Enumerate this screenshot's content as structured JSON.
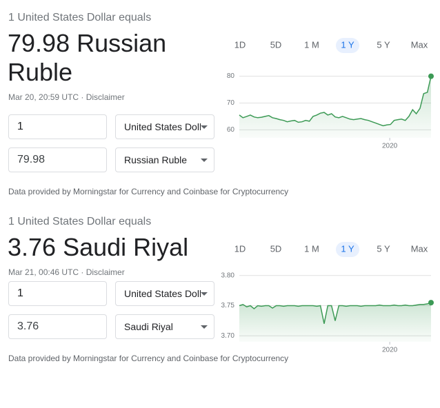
{
  "widgets": [
    {
      "header": "1 United States Dollar equals",
      "amount": "79.98 Russian Ruble",
      "timestamp": "Mar 20, 20:59 UTC",
      "disclaimer": "Disclaimer",
      "from_amount": "1",
      "from_currency": "United States Dollar",
      "to_amount": "79.98",
      "to_currency": "Russian Ruble",
      "footer": "Data provided by Morningstar for Currency and Coinbase for Cryptocurrency",
      "ranges": [
        "1D",
        "5D",
        "1 M",
        "1 Y",
        "5 Y",
        "Max"
      ],
      "selected_range": 3,
      "chart": {
        "type": "line",
        "color": "#3c9a55",
        "values": [
          65.5,
          64.5,
          65,
          65.5,
          64.8,
          64.5,
          64.7,
          65,
          65.3,
          64.5,
          64.2,
          63.8,
          63.5,
          63,
          63.3,
          63.5,
          62.8,
          63,
          63.5,
          63.2,
          65,
          65.5,
          66.2,
          66.5,
          65.5,
          66,
          64.8,
          64.5,
          65,
          64.5,
          64,
          63.8,
          64,
          64.2,
          63.8,
          63.5,
          63,
          62.5,
          62,
          61.5,
          61.8,
          62,
          63.5,
          63.8,
          64,
          63.5,
          65,
          67.5,
          66,
          68,
          73.5,
          74,
          79.98
        ],
        "xlim": [
          0,
          52
        ],
        "xticks": [
          {
            "value": 40.8,
            "label": "2020"
          }
        ],
        "ylim": [
          57,
          84
        ],
        "yticks": [
          60,
          70,
          80
        ]
      }
    },
    {
      "header": "1 United States Dollar equals",
      "amount": "3.76 Saudi Riyal",
      "timestamp": "Mar 21, 00:46 UTC",
      "disclaimer": "Disclaimer",
      "from_amount": "1",
      "from_currency": "United States Dollar",
      "to_amount": "3.76",
      "to_currency": "Saudi Riyal",
      "footer": "Data provided by Morningstar for Currency and Coinbase for Cryptocurrency",
      "ranges": [
        "1D",
        "5D",
        "1 M",
        "1 Y",
        "5 Y",
        "Max"
      ],
      "selected_range": 3,
      "chart": {
        "type": "line",
        "color": "#3c9a55",
        "values": [
          3.75,
          3.752,
          3.748,
          3.75,
          3.745,
          3.75,
          3.749,
          3.75,
          3.75,
          3.746,
          3.75,
          3.75,
          3.749,
          3.75,
          3.75,
          3.75,
          3.749,
          3.75,
          3.75,
          3.75,
          3.75,
          3.749,
          3.75,
          3.72,
          3.75,
          3.75,
          3.725,
          3.75,
          3.75,
          3.749,
          3.75,
          3.75,
          3.75,
          3.749,
          3.75,
          3.75,
          3.75,
          3.75,
          3.751,
          3.75,
          3.75,
          3.75,
          3.751,
          3.75,
          3.75,
          3.751,
          3.75,
          3.75,
          3.751,
          3.752,
          3.752,
          3.753,
          3.755
        ],
        "xlim": [
          0,
          52
        ],
        "xticks": [
          {
            "value": 40.8,
            "label": "2020"
          }
        ],
        "ylim": [
          3.69,
          3.81
        ],
        "yticks": [
          {
            "value": 3.8,
            "label": "3.80"
          },
          3.75,
          {
            "value": 3.7,
            "label": "3.70"
          }
        ]
      }
    }
  ]
}
